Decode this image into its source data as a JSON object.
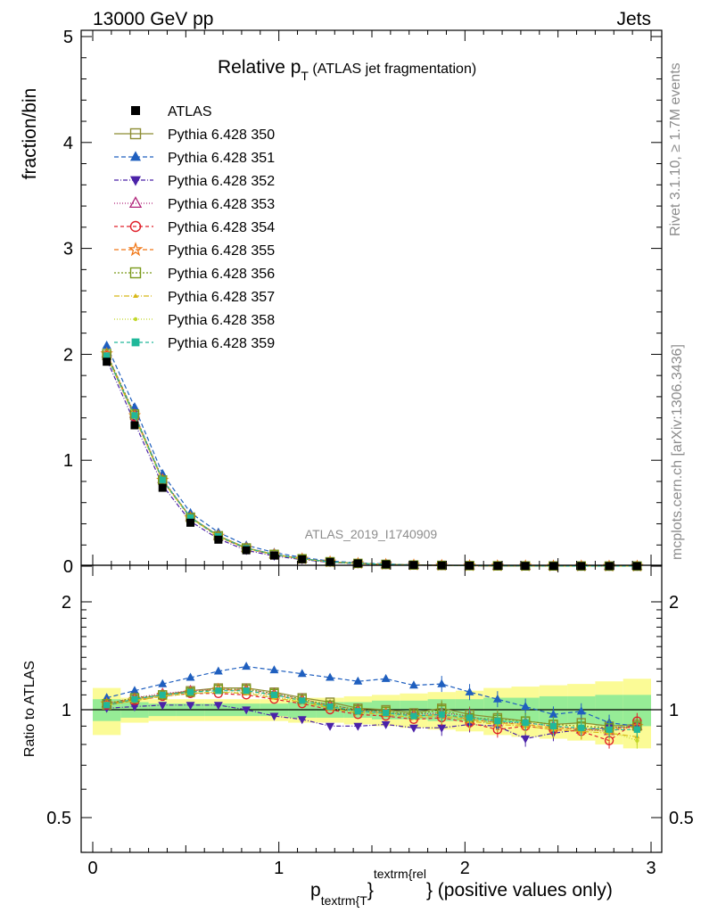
{
  "header": {
    "left": "13000 GeV pp",
    "right": "Jets"
  },
  "side_labels": {
    "rivet": "Rivet 3.1.10, ≥ 1.7M events",
    "mcplots": "mcplots.cern.ch [arXiv:1306.3436]"
  },
  "watermark": "ATLAS_2019_I1740909",
  "chart_data": {
    "type": "line",
    "title": {
      "main": "Relative p",
      "sub": "T",
      "rest": " (ATLAS jet fragmentation)"
    },
    "ylabel": "fraction/bin",
    "ratio_ylabel": "Ratio to ATLAS",
    "xlabel": {
      "p": "p",
      "sub": "textrm{T",
      "brace_close": "}",
      "sup": "textrm{rel",
      "brace2": "}",
      "rest": " (positive values only)"
    },
    "xlim": [
      -0.06,
      3.06
    ],
    "ylim": [
      0,
      5
    ],
    "ratio_ylim": [
      0.35,
      2.3
    ],
    "x_ticks": [
      "0",
      "1",
      "2",
      "3"
    ],
    "y_ticks": [
      "0",
      "1",
      "2",
      "3",
      "4",
      "5"
    ],
    "ratio_ticks": [
      "0.5",
      "1",
      "2"
    ],
    "x": [
      0.075,
      0.225,
      0.375,
      0.525,
      0.675,
      0.825,
      0.975,
      1.125,
      1.275,
      1.425,
      1.575,
      1.725,
      1.875,
      2.025,
      2.175,
      2.325,
      2.475,
      2.625,
      2.775,
      2.925
    ],
    "bin_edges": [
      0,
      0.15,
      0.3,
      0.45,
      0.6,
      0.75,
      0.9,
      1.05,
      1.2,
      1.35,
      1.5,
      1.65,
      1.8,
      1.95,
      2.1,
      2.25,
      2.4,
      2.55,
      2.7,
      2.85,
      3.0
    ],
    "data": {
      "name": "ATLAS",
      "values": [
        1.93,
        1.33,
        0.74,
        0.41,
        0.25,
        0.15,
        0.1,
        0.065,
        0.04,
        0.026,
        0.017,
        0.011,
        0.0075,
        0.005,
        0.0035,
        0.0025,
        0.0018,
        0.0012,
        0.0008,
        0.0006
      ],
      "band_inner": [
        0.07,
        0.05,
        0.04,
        0.04,
        0.04,
        0.04,
        0.04,
        0.05,
        0.05,
        0.05,
        0.06,
        0.06,
        0.07,
        0.07,
        0.08,
        0.08,
        0.09,
        0.09,
        0.1,
        0.1
      ],
      "band_outer": [
        0.15,
        0.08,
        0.07,
        0.07,
        0.07,
        0.07,
        0.07,
        0.08,
        0.08,
        0.09,
        0.1,
        0.11,
        0.12,
        0.13,
        0.15,
        0.16,
        0.17,
        0.18,
        0.2,
        0.22
      ]
    },
    "series": [
      {
        "name": "Pythia 6.428 350",
        "color": "#8c8c32",
        "dash": "",
        "marker": "square-open",
        "ratio": [
          1.03,
          1.07,
          1.1,
          1.13,
          1.15,
          1.15,
          1.12,
          1.08,
          1.05,
          1.01,
          1.0,
          0.98,
          1.01,
          0.97,
          0.95,
          0.93,
          0.91,
          0.92,
          0.9,
          0.91
        ]
      },
      {
        "name": "Pythia 6.428 351",
        "color": "#1f5fbf",
        "dash": "5,3",
        "marker": "triangle-up",
        "ratio": [
          1.08,
          1.13,
          1.18,
          1.23,
          1.28,
          1.32,
          1.29,
          1.26,
          1.23,
          1.2,
          1.22,
          1.17,
          1.18,
          1.12,
          1.07,
          1.02,
          0.97,
          0.99,
          0.92,
          0.9
        ]
      },
      {
        "name": "Pythia 6.428 352",
        "color": "#4b22a8",
        "dash": "5,2,1,2",
        "marker": "triangle-down",
        "ratio": [
          1.01,
          1.02,
          1.03,
          1.03,
          1.03,
          1.0,
          0.96,
          0.94,
          0.9,
          0.9,
          0.91,
          0.89,
          0.89,
          0.91,
          0.9,
          0.83,
          0.86,
          0.88,
          0.89,
          0.9
        ]
      },
      {
        "name": "Pythia 6.428 353",
        "color": "#b0247a",
        "dash": "1,2",
        "marker": "triangle-open",
        "ratio": [
          1.04,
          1.08,
          1.11,
          1.13,
          1.14,
          1.14,
          1.11,
          1.07,
          1.03,
          1.0,
          0.98,
          0.97,
          0.98,
          0.96,
          0.92,
          0.92,
          0.9,
          0.88,
          0.87,
          0.9
        ]
      },
      {
        "name": "Pythia 6.428 354",
        "color": "#e0202a",
        "dash": "4,3",
        "marker": "circle-open",
        "ratio": [
          1.03,
          1.06,
          1.09,
          1.11,
          1.11,
          1.1,
          1.07,
          1.04,
          1.0,
          0.97,
          0.96,
          0.94,
          0.95,
          0.92,
          0.88,
          0.9,
          0.88,
          0.87,
          0.82,
          0.93
        ]
      },
      {
        "name": "Pythia 6.428 355",
        "color": "#f07818",
        "dash": "5,3",
        "marker": "star-open",
        "ratio": [
          1.04,
          1.07,
          1.1,
          1.12,
          1.14,
          1.13,
          1.1,
          1.06,
          1.02,
          0.99,
          0.98,
          0.96,
          0.97,
          0.94,
          0.92,
          0.91,
          0.89,
          0.88,
          0.88,
          0.9
        ]
      },
      {
        "name": "Pythia 6.428 356",
        "color": "#7a9a1a",
        "dash": "2,2",
        "marker": "square-open",
        "ratio": [
          1.04,
          1.08,
          1.1,
          1.12,
          1.14,
          1.14,
          1.11,
          1.07,
          1.03,
          1.0,
          0.99,
          0.97,
          1.0,
          0.95,
          0.94,
          0.93,
          0.91,
          0.9,
          0.89,
          0.9
        ]
      },
      {
        "name": "Pythia 6.428 357",
        "color": "#d8b818",
        "dash": "6,2,1,2",
        "marker": "tri-small",
        "ratio": [
          1.03,
          1.06,
          1.09,
          1.11,
          1.12,
          1.11,
          1.08,
          1.05,
          1.01,
          0.98,
          0.97,
          0.95,
          0.96,
          0.93,
          0.91,
          0.9,
          0.88,
          0.87,
          0.86,
          0.84
        ]
      },
      {
        "name": "Pythia 6.428 358",
        "color": "#c2d82a",
        "dash": "1,2",
        "marker": "dot-small",
        "ratio": [
          1.03,
          1.06,
          1.09,
          1.11,
          1.12,
          1.12,
          1.09,
          1.05,
          1.02,
          0.99,
          0.98,
          0.96,
          0.97,
          0.94,
          0.92,
          0.91,
          0.89,
          0.88,
          0.87,
          0.82
        ]
      },
      {
        "name": "Pythia 6.428 359",
        "color": "#20b89a",
        "dash": "4,3",
        "marker": "square-filled",
        "ratio": [
          1.03,
          1.07,
          1.1,
          1.12,
          1.13,
          1.13,
          1.1,
          1.06,
          1.02,
          0.99,
          0.98,
          0.96,
          0.97,
          0.95,
          0.93,
          0.92,
          0.9,
          0.89,
          0.88,
          0.88
        ]
      }
    ]
  }
}
